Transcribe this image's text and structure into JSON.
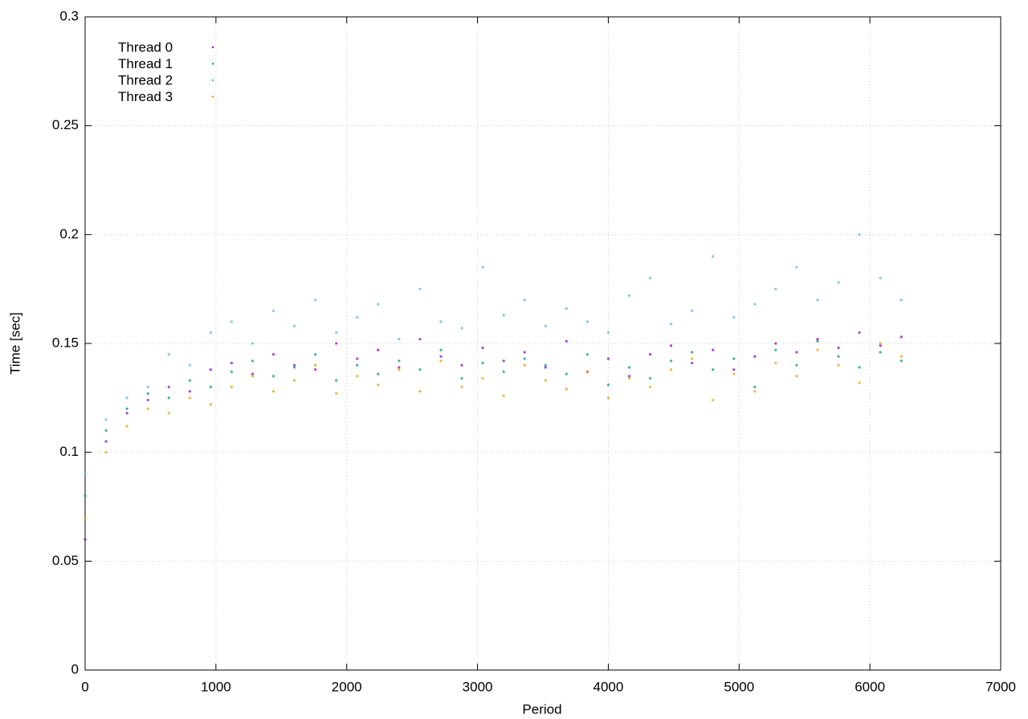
{
  "chart_data": {
    "type": "scatter",
    "xlabel": "Period",
    "ylabel": "Time [sec]",
    "xlim": [
      0,
      7000
    ],
    "ylim": [
      0,
      0.3
    ],
    "xticks": [
      0,
      1000,
      2000,
      3000,
      4000,
      5000,
      6000,
      7000
    ],
    "yticks": [
      0,
      0.05,
      0.1,
      0.15,
      0.2,
      0.25,
      0.3
    ],
    "grid": true,
    "legend": "top-left",
    "x": [
      0,
      160,
      320,
      480,
      640,
      800,
      960,
      1120,
      1280,
      1440,
      1600,
      1760,
      1920,
      2080,
      2240,
      2400,
      2560,
      2720,
      2880,
      3040,
      3200,
      3360,
      3520,
      3680,
      3840,
      4000,
      4160,
      4320,
      4480,
      4640,
      4800,
      4960,
      5120,
      5280,
      5440,
      5600,
      5760,
      5920,
      6080,
      6240
    ],
    "series": [
      {
        "name": "Thread 0",
        "color": "#9400d3",
        "values": [
          0.06,
          0.105,
          0.118,
          0.124,
          0.13,
          0.128,
          0.138,
          0.141,
          0.136,
          0.145,
          0.14,
          0.138,
          0.15,
          0.143,
          0.147,
          0.139,
          0.152,
          0.144,
          0.14,
          0.148,
          0.142,
          0.146,
          0.139,
          0.151,
          0.137,
          0.143,
          0.135,
          0.145,
          0.149,
          0.141,
          0.147,
          0.138,
          0.144,
          0.15,
          0.146,
          0.152,
          0.148,
          0.155,
          0.149,
          0.153
        ]
      },
      {
        "name": "Thread 1",
        "color": "#009e73",
        "values": [
          0.08,
          0.11,
          0.12,
          0.127,
          0.125,
          0.133,
          0.13,
          0.137,
          0.142,
          0.135,
          0.139,
          0.145,
          0.133,
          0.14,
          0.136,
          0.142,
          0.138,
          0.147,
          0.134,
          0.141,
          0.137,
          0.143,
          0.14,
          0.136,
          0.145,
          0.131,
          0.139,
          0.134,
          0.142,
          0.146,
          0.138,
          0.143,
          0.13,
          0.147,
          0.14,
          0.151,
          0.144,
          0.139,
          0.146,
          0.142
        ]
      },
      {
        "name": "Thread 2",
        "color": "#56b4e9",
        "values": [
          0.09,
          0.115,
          0.125,
          0.13,
          0.145,
          0.14,
          0.155,
          0.16,
          0.15,
          0.165,
          0.158,
          0.17,
          0.155,
          0.162,
          0.168,
          0.152,
          0.175,
          0.16,
          0.157,
          0.185,
          0.163,
          0.17,
          0.158,
          0.166,
          0.16,
          0.155,
          0.172,
          0.18,
          0.159,
          0.165,
          0.19,
          0.162,
          0.168,
          0.175,
          0.185,
          0.17,
          0.178,
          0.2,
          0.18,
          0.17
        ]
      },
      {
        "name": "Thread 3",
        "color": "#e69f00",
        "values": [
          0.07,
          0.1,
          0.112,
          0.12,
          0.118,
          0.125,
          0.122,
          0.13,
          0.135,
          0.128,
          0.133,
          0.14,
          0.127,
          0.135,
          0.131,
          0.138,
          0.128,
          0.142,
          0.13,
          0.134,
          0.126,
          0.14,
          0.133,
          0.129,
          0.137,
          0.125,
          0.134,
          0.13,
          0.138,
          0.143,
          0.124,
          0.136,
          0.128,
          0.141,
          0.135,
          0.147,
          0.14,
          0.132,
          0.15,
          0.144
        ]
      }
    ]
  }
}
